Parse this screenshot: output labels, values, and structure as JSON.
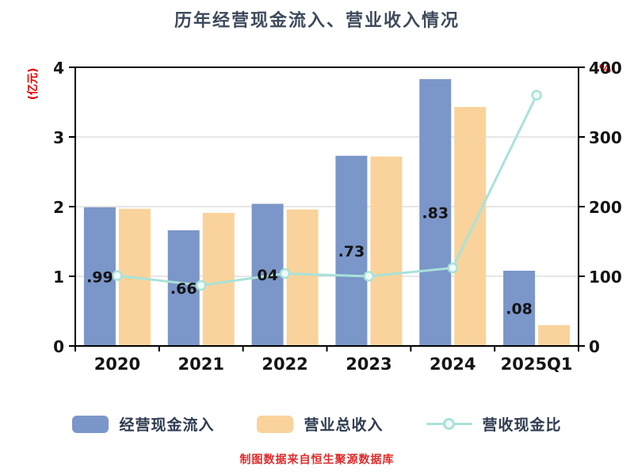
{
  "title": "历年经营现金流入、营业收入情况",
  "footer": "制图数据来自恒生聚源数据库",
  "chart_data": {
    "type": "bar+line",
    "categories": [
      "2020",
      "2021",
      "2022",
      "2023",
      "2024",
      "2025Q1"
    ],
    "series": [
      {
        "name": "经营现金流入",
        "type": "bar",
        "axis": "left",
        "color": "#7b96c8",
        "values": [
          1.99,
          1.66,
          2.04,
          2.73,
          3.83,
          1.08
        ]
      },
      {
        "name": "营业总收入",
        "type": "bar",
        "axis": "left",
        "color": "#f9d39b",
        "values": [
          1.97,
          1.91,
          1.96,
          2.72,
          3.43,
          0.3
        ]
      },
      {
        "name": "营收现金比",
        "type": "line",
        "axis": "right",
        "color": "#a9e2da",
        "values": [
          101,
          87,
          104,
          100,
          112,
          360
        ]
      }
    ],
    "bar_labels": [
      ".99",
      ".66",
      "04",
      ".73",
      ".83",
      ".08"
    ],
    "left_axis": {
      "label": "(亿元)",
      "min": 0,
      "max": 4,
      "ticks": [
        0,
        1,
        2,
        3,
        4
      ]
    },
    "right_axis": {
      "label": "%",
      "min": 0,
      "max": 400,
      "ticks": [
        0,
        100,
        200,
        300,
        400
      ]
    },
    "grid": true,
    "legend_position": "bottom",
    "marker_fill": "#f0faf8",
    "grid_color": "#cfcfcf",
    "axis_color": "#000000"
  }
}
